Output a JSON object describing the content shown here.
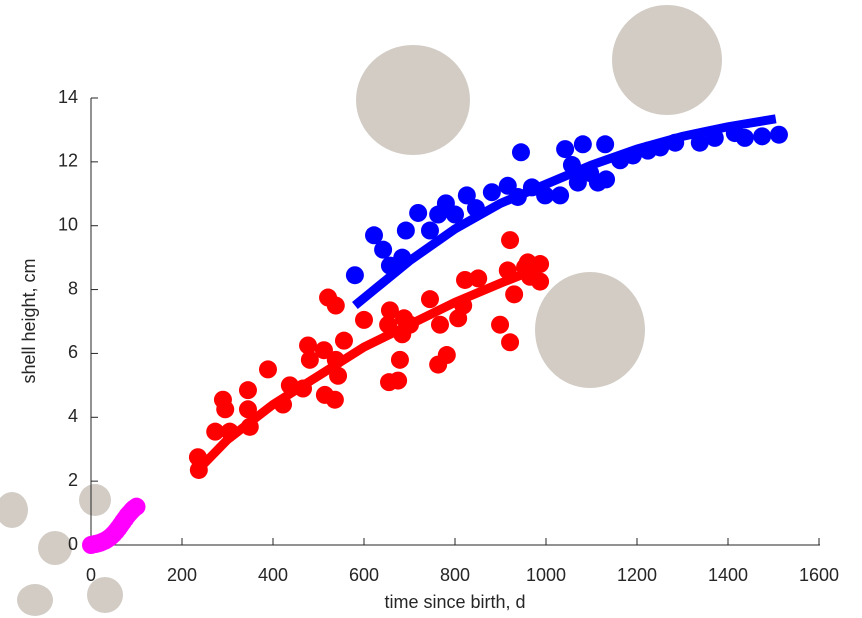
{
  "chart_data": {
    "type": "scatter",
    "xlabel": "time since birth, d",
    "ylabel": "shell height, cm",
    "xlim": [
      0,
      1600
    ],
    "ylim": [
      0,
      14
    ],
    "xticks": [
      0,
      200,
      400,
      600,
      800,
      1000,
      1200,
      1400,
      1600
    ],
    "yticks": [
      0,
      2,
      4,
      6,
      8,
      10,
      12,
      14
    ],
    "series": [
      {
        "style": "marker",
        "color": "#0000ff",
        "x": [
          580,
          622,
          642,
          657,
          684,
          692,
          719,
          745,
          763,
          780,
          800,
          826,
          846,
          881,
          916,
          938,
          945,
          969,
          998,
          1031,
          1042,
          1057,
          1070,
          1081,
          1097,
          1114,
          1130,
          1132,
          1163,
          1191,
          1224,
          1251,
          1284,
          1338,
          1371,
          1415,
          1437,
          1475,
          1512
        ],
        "values": [
          8.45,
          9.7,
          9.25,
          8.75,
          9.0,
          9.85,
          10.4,
          9.85,
          10.35,
          10.7,
          10.35,
          10.95,
          10.55,
          11.05,
          11.25,
          10.9,
          12.3,
          11.2,
          10.95,
          10.95,
          12.4,
          11.9,
          11.35,
          12.55,
          11.65,
          11.35,
          12.55,
          11.45,
          12.05,
          12.2,
          12.35,
          12.45,
          12.6,
          12.6,
          12.75,
          12.9,
          12.75,
          12.8,
          12.85
        ]
      },
      {
        "style": "marker",
        "color": "#ff0000",
        "x": [
          235,
          237,
          273,
          290,
          295,
          305,
          345,
          345,
          349,
          389,
          422,
          437,
          466,
          477,
          481,
          512,
          514,
          521,
          536,
          538,
          538,
          543,
          556,
          600,
          657,
          653,
          655,
          675,
          679,
          684,
          688,
          701,
          745,
          767,
          763,
          782,
          807,
          818,
          822,
          851,
          899,
          916,
          921,
          921,
          930,
          954,
          960,
          987,
          987,
          965
        ],
        "values": [
          2.75,
          2.35,
          3.55,
          4.55,
          4.25,
          3.55,
          4.85,
          4.25,
          3.7,
          5.5,
          4.4,
          5.0,
          4.9,
          6.25,
          5.8,
          6.1,
          4.7,
          7.75,
          4.55,
          7.5,
          5.8,
          5.3,
          6.4,
          7.05,
          7.35,
          6.9,
          5.1,
          5.15,
          5.8,
          6.6,
          7.1,
          6.9,
          7.7,
          6.9,
          5.65,
          5.95,
          7.1,
          7.5,
          8.3,
          8.35,
          6.9,
          8.6,
          9.55,
          6.35,
          7.85,
          8.7,
          8.85,
          8.8,
          8.25,
          8.4
        ]
      },
      {
        "style": "marker",
        "color": "#ff00ff",
        "x": [
          0,
          5,
          10,
          15,
          20,
          25,
          30,
          35,
          40,
          45,
          50,
          55,
          60,
          65,
          70,
          75,
          80,
          85,
          90,
          95,
          100
        ],
        "values": [
          0,
          0.02,
          0.03,
          0.05,
          0.07,
          0.1,
          0.13,
          0.17,
          0.22,
          0.28,
          0.35,
          0.43,
          0.52,
          0.62,
          0.72,
          0.82,
          0.92,
          1.0,
          1.08,
          1.15,
          1.2
        ]
      },
      {
        "style": "line",
        "color": "#0000ff",
        "x": [
          580,
          700,
          800,
          900,
          1000,
          1100,
          1200,
          1300,
          1400,
          1505
        ],
        "values": [
          7.5,
          8.9,
          9.9,
          10.7,
          11.3,
          11.9,
          12.4,
          12.8,
          13.1,
          13.35
        ]
      },
      {
        "style": "line",
        "color": "#ff0000",
        "x": [
          235,
          300,
          400,
          500,
          600,
          700,
          800,
          900,
          980
        ],
        "values": [
          2.35,
          3.3,
          4.4,
          5.3,
          6.2,
          6.9,
          7.6,
          8.2,
          8.65
        ]
      }
    ]
  }
}
